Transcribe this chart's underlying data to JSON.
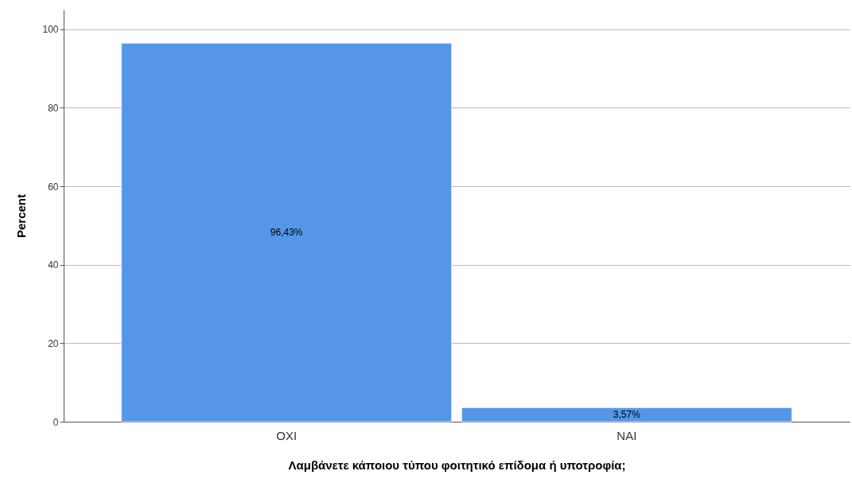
{
  "chart_data": {
    "type": "bar",
    "xlabel": "Λαμβάνετε κάποιου τύπου φοιτητικό επίδομα ή υποτροφία;",
    "ylabel": "Percent",
    "categories": [
      "ΟΧΙ",
      "ΝΑΙ"
    ],
    "values": [
      96.43,
      3.57
    ],
    "value_labels": [
      "96,43%",
      "3,57%"
    ],
    "color": "#5596e6",
    "ylim": [
      0,
      105
    ],
    "yticks": [
      0,
      20,
      40,
      60,
      80,
      100
    ],
    "grid": "y"
  }
}
